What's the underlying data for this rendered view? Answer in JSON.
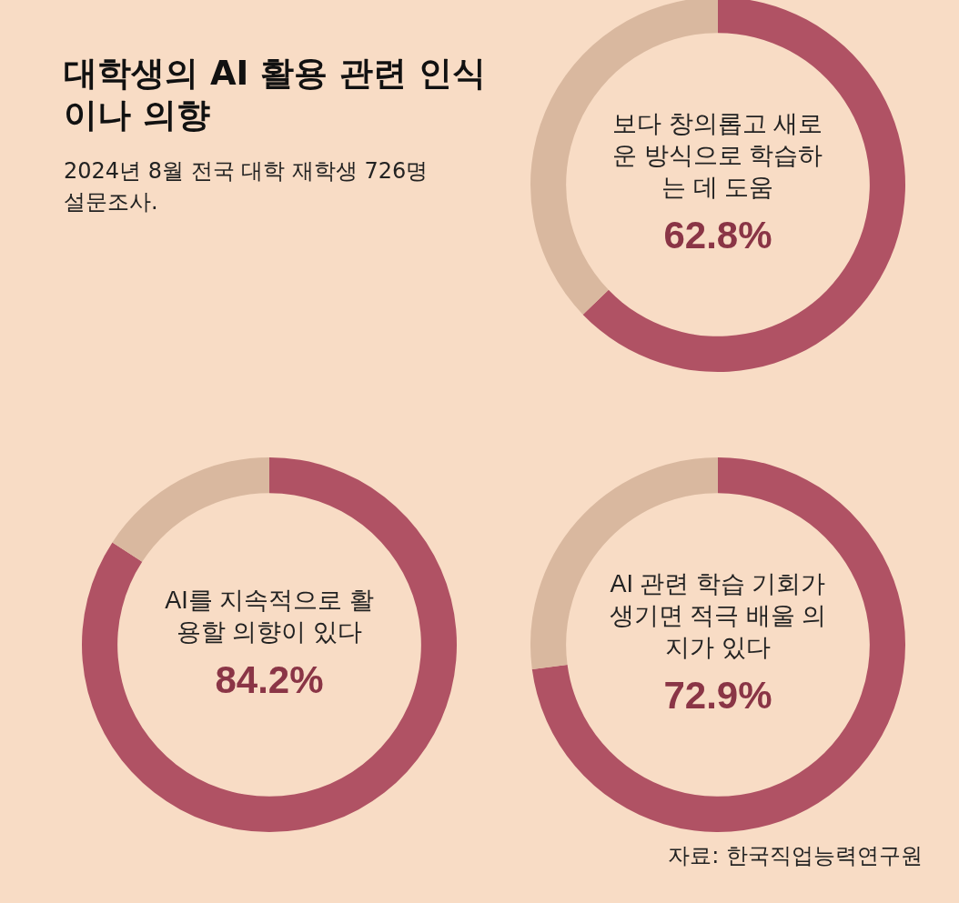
{
  "chart_data": [
    {
      "type": "donut",
      "title": "대학생의 AI 활용 관련 인식이나 의향",
      "subtitle": "2024년 8월 전국 대학 재학생 726명 설문조사.",
      "categories": [
        "보다 창의롭고 새로운 방식으로 학습하는 데 도움",
        null
      ],
      "values": [
        62.8,
        37.2
      ],
      "value_labels": [
        "62.8%",
        null
      ],
      "colors": [
        "#b05264",
        "#d9b89f"
      ],
      "legend": false
    },
    {
      "type": "donut",
      "categories": [
        "AI를 지속적으로 활용할 의향이 있다",
        null
      ],
      "values": [
        84.2,
        15.8
      ],
      "value_labels": [
        "84.2%",
        null
      ],
      "colors": [
        "#b05264",
        "#d9b89f"
      ],
      "legend": false
    },
    {
      "type": "donut",
      "categories": [
        "AI 관련 학습 기회가 생기면 적극 배울 의지가 있다",
        null
      ],
      "values": [
        72.9,
        27.1
      ],
      "value_labels": [
        "72.9%",
        null
      ],
      "colors": [
        "#b05264",
        "#d9b89f"
      ],
      "legend": false,
      "annotations": [
        "자료: 한국직업능력연구원"
      ]
    }
  ]
}
